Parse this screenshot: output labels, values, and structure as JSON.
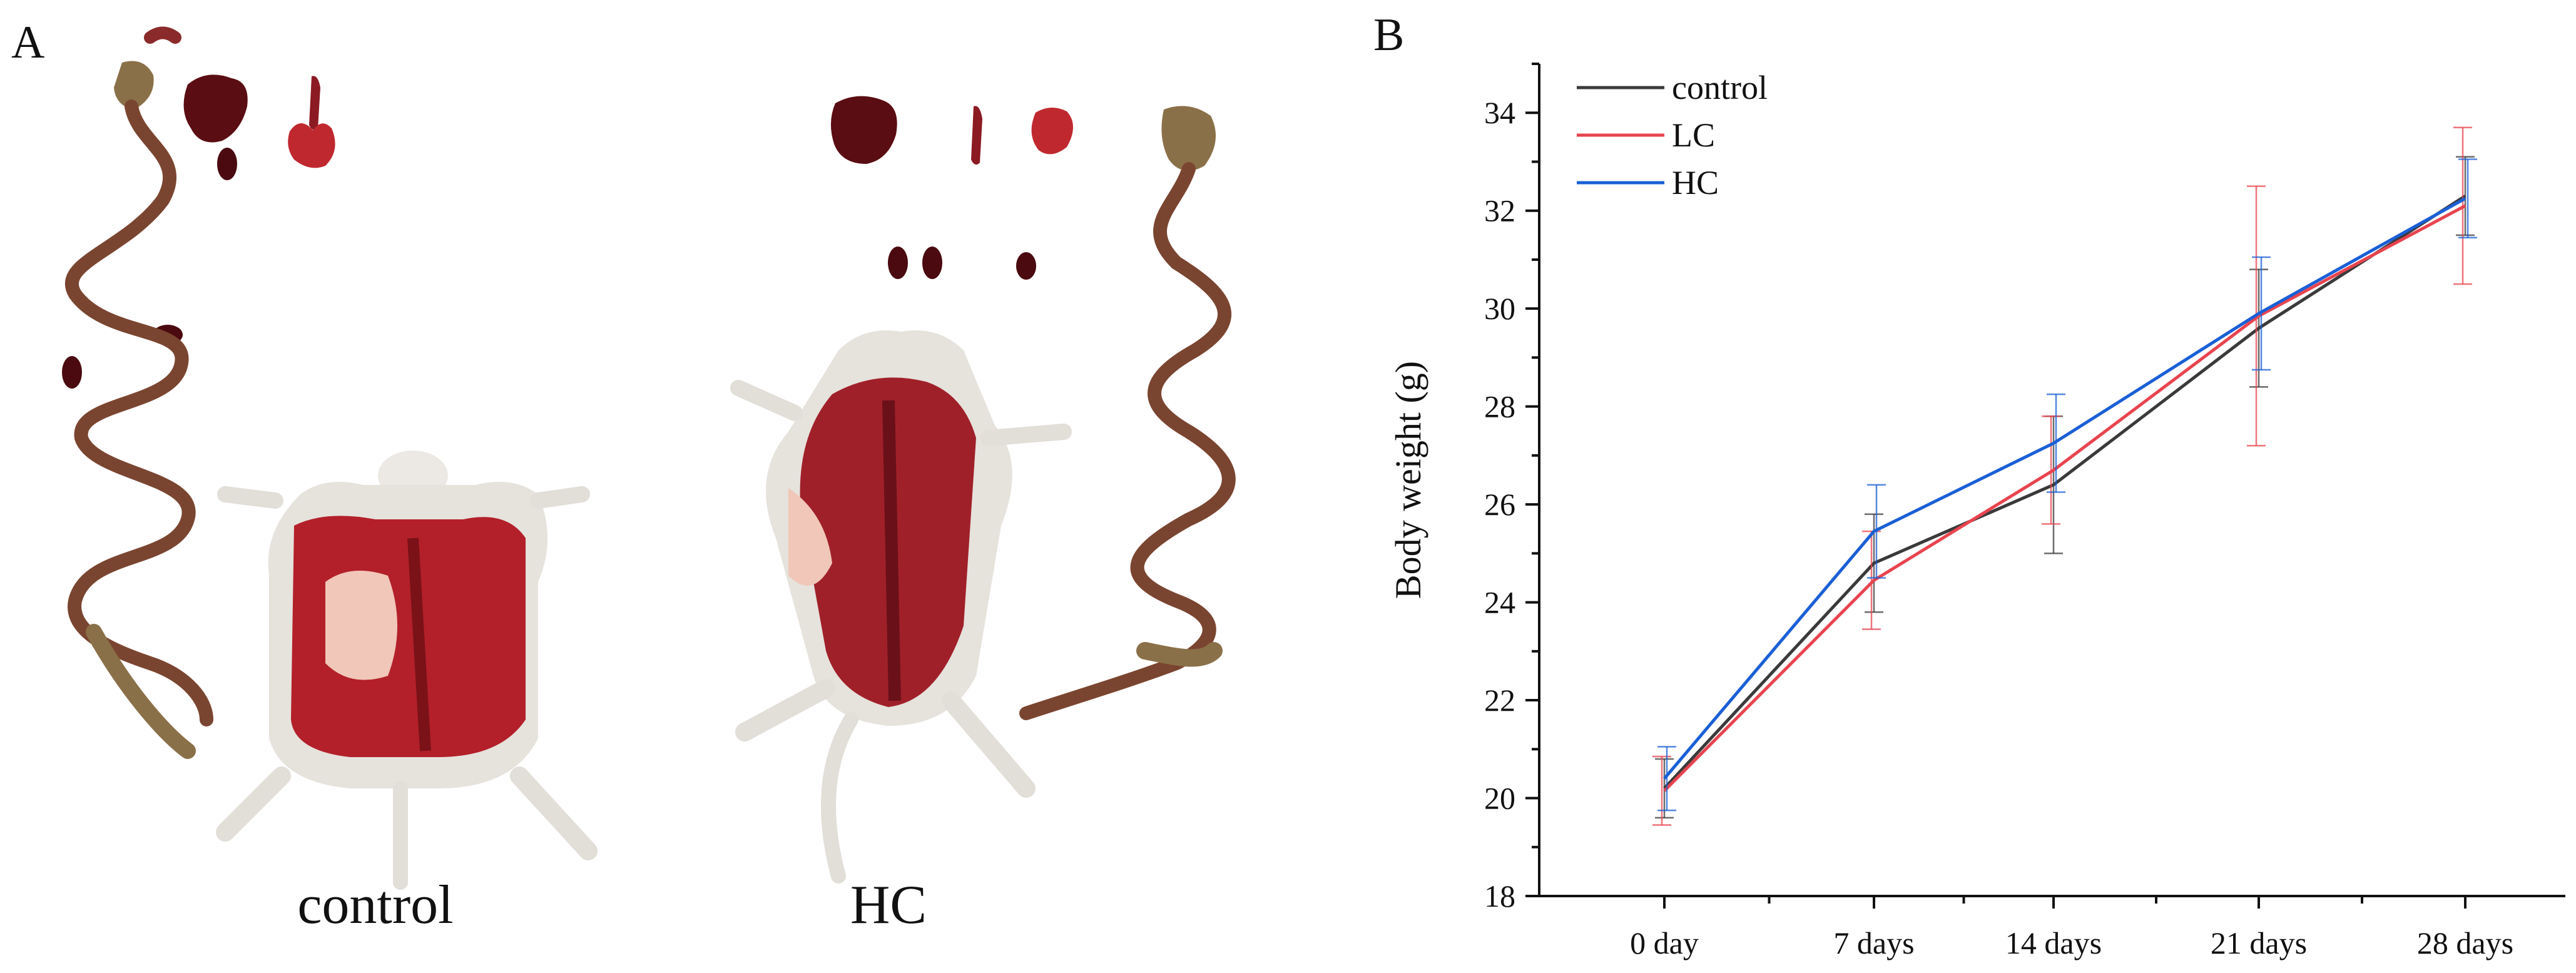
{
  "panel_a": {
    "letter": "A",
    "labels": [
      "control",
      "HC"
    ]
  },
  "chart_data": {
    "panel_letter": "B",
    "type": "line",
    "title": "",
    "xlabel": "",
    "ylabel": "Body weight (g)",
    "categories": [
      "0 day",
      "7 days",
      "14 days",
      "21 days",
      "28 days"
    ],
    "ylim": [
      18,
      35
    ],
    "yticks": [
      18,
      20,
      22,
      24,
      26,
      28,
      30,
      32,
      34
    ],
    "grid": false,
    "legend_position": "top-left",
    "series": [
      {
        "name": "control",
        "color": "#3a3a3a",
        "values": [
          20.2,
          24.8,
          26.4,
          29.6,
          32.3
        ],
        "errors": [
          0.6,
          1.0,
          1.4,
          1.2,
          0.8
        ]
      },
      {
        "name": "LC",
        "color": "#e8444f",
        "values": [
          20.15,
          24.45,
          26.7,
          29.85,
          32.1
        ],
        "errors": [
          0.7,
          1.0,
          1.1,
          2.65,
          1.6
        ]
      },
      {
        "name": "HC",
        "color": "#1a5fd6",
        "values": [
          20.4,
          25.45,
          27.25,
          29.9,
          32.25
        ],
        "errors": [
          0.65,
          0.95,
          1.0,
          1.15,
          0.8
        ]
      }
    ]
  }
}
